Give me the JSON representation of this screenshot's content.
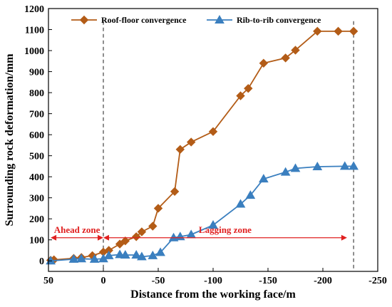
{
  "chart_data": {
    "type": "line",
    "xlabel": "Distance from the working face/m",
    "ylabel": "Surrounding rock deformation/mm",
    "xlim": [
      50,
      -250
    ],
    "ylim": [
      -50,
      1200
    ],
    "x_ticks": [
      50,
      0,
      -50,
      -100,
      -150,
      -200,
      -250
    ],
    "y_ticks": [
      0,
      100,
      200,
      300,
      400,
      500,
      600,
      700,
      800,
      900,
      1000,
      1100,
      1200
    ],
    "legend_position": "top",
    "series": [
      {
        "name": "Roof-floor convergence",
        "color": "#b35c17",
        "marker": "diamond",
        "points": [
          {
            "x": 48,
            "y": 3
          },
          {
            "x": 45,
            "y": 5
          },
          {
            "x": 27,
            "y": 12
          },
          {
            "x": 20,
            "y": 16
          },
          {
            "x": 10,
            "y": 25
          },
          {
            "x": 0,
            "y": 42
          },
          {
            "x": -5,
            "y": 50
          },
          {
            "x": -15,
            "y": 80
          },
          {
            "x": -20,
            "y": 95
          },
          {
            "x": -30,
            "y": 115
          },
          {
            "x": -35,
            "y": 138
          },
          {
            "x": -45,
            "y": 165
          },
          {
            "x": -50,
            "y": 250
          },
          {
            "x": -65,
            "y": 330
          },
          {
            "x": -70,
            "y": 530
          },
          {
            "x": -80,
            "y": 565
          },
          {
            "x": -100,
            "y": 615
          },
          {
            "x": -125,
            "y": 785
          },
          {
            "x": -132,
            "y": 820
          },
          {
            "x": -146,
            "y": 940
          },
          {
            "x": -166,
            "y": 965
          },
          {
            "x": -175,
            "y": 1002
          },
          {
            "x": -195,
            "y": 1092
          },
          {
            "x": -214,
            "y": 1092
          },
          {
            "x": -228,
            "y": 1092
          }
        ]
      },
      {
        "name": "Rib-to-rib convergence",
        "color": "#3a7fbf",
        "marker": "triangle",
        "points": [
          {
            "x": 48,
            "y": 0
          },
          {
            "x": 27,
            "y": 8
          },
          {
            "x": 20,
            "y": 10
          },
          {
            "x": 8,
            "y": 8
          },
          {
            "x": 0,
            "y": 10
          },
          {
            "x": -5,
            "y": 25
          },
          {
            "x": -15,
            "y": 30
          },
          {
            "x": -20,
            "y": 28
          },
          {
            "x": -30,
            "y": 28
          },
          {
            "x": -35,
            "y": 20
          },
          {
            "x": -45,
            "y": 25
          },
          {
            "x": -52,
            "y": 40
          },
          {
            "x": -64,
            "y": 110
          },
          {
            "x": -70,
            "y": 115
          },
          {
            "x": -80,
            "y": 125
          },
          {
            "x": -100,
            "y": 170
          },
          {
            "x": -125,
            "y": 270
          },
          {
            "x": -134,
            "y": 312
          },
          {
            "x": -146,
            "y": 390
          },
          {
            "x": -166,
            "y": 422
          },
          {
            "x": -175,
            "y": 440
          },
          {
            "x": -195,
            "y": 448
          },
          {
            "x": -220,
            "y": 450
          },
          {
            "x": -228,
            "y": 450
          }
        ]
      }
    ],
    "reference_lines": [
      0,
      -228
    ],
    "zones": [
      {
        "label": "Ahead zone",
        "from": 48,
        "to": 0,
        "y": 110,
        "color": "#e02020"
      },
      {
        "label": "Lagging zone",
        "from": 0,
        "to": -222,
        "y": 110,
        "color": "#e02020"
      }
    ]
  }
}
